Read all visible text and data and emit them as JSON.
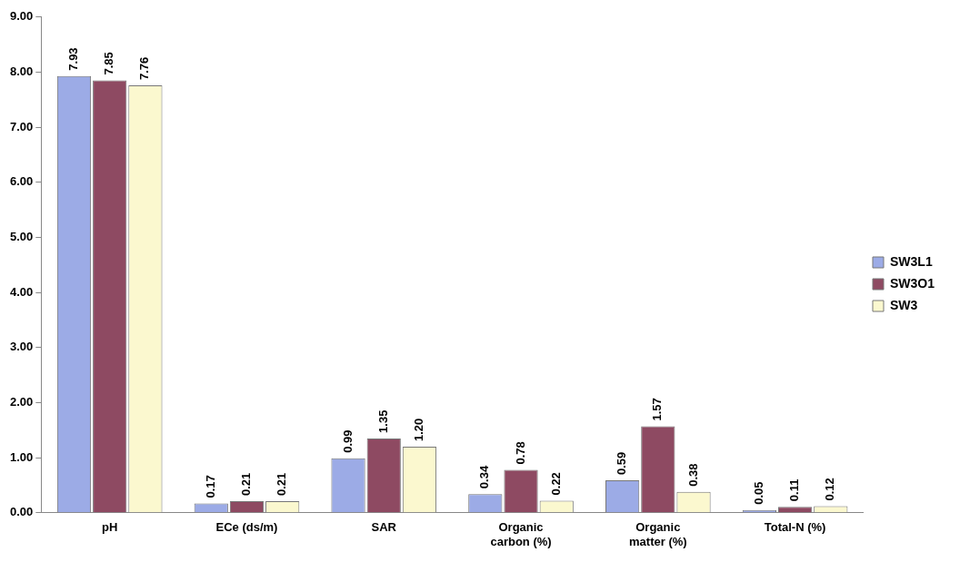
{
  "chart_data": {
    "type": "bar",
    "categories": [
      "pH",
      "ECe (ds/m)",
      "SAR",
      "Organic carbon (%)",
      "Organic matter (%)",
      "Total-N (%)"
    ],
    "series": [
      {
        "name": "SW3L1",
        "color": "#9cabe6",
        "values": [
          7.93,
          0.17,
          0.99,
          0.34,
          0.59,
          0.05
        ],
        "value_labels": [
          "7.93",
          "0.17",
          "0.99",
          "0.34",
          "0.59",
          "0.05"
        ]
      },
      {
        "name": "SW3O1",
        "color": "#8e4a62",
        "values": [
          7.85,
          0.21,
          1.35,
          0.78,
          1.57,
          0.11
        ],
        "value_labels": [
          "7.85",
          "0.21",
          "1.35",
          "0.78",
          "1.57",
          "0.11"
        ]
      },
      {
        "name": "SW3",
        "color": "#fbf8cf",
        "values": [
          7.76,
          0.21,
          1.2,
          0.22,
          0.38,
          0.12
        ],
        "value_labels": [
          "7.76",
          "0.21",
          "1.20",
          "0.22",
          "0.38",
          "0.12"
        ]
      }
    ],
    "ylim": [
      0,
      9
    ],
    "yticks": [
      {
        "value": 0,
        "label": "0.00"
      },
      {
        "value": 1,
        "label": "1.00"
      },
      {
        "value": 2,
        "label": "2.00"
      },
      {
        "value": 3,
        "label": "3.00"
      },
      {
        "value": 4,
        "label": "4.00"
      },
      {
        "value": 5,
        "label": "5.00"
      },
      {
        "value": 6,
        "label": "6.00"
      },
      {
        "value": 7,
        "label": "7.00"
      },
      {
        "value": 8,
        "label": "8.00"
      },
      {
        "value": 9,
        "label": "9.00"
      }
    ],
    "grid": false,
    "legend": "right"
  }
}
